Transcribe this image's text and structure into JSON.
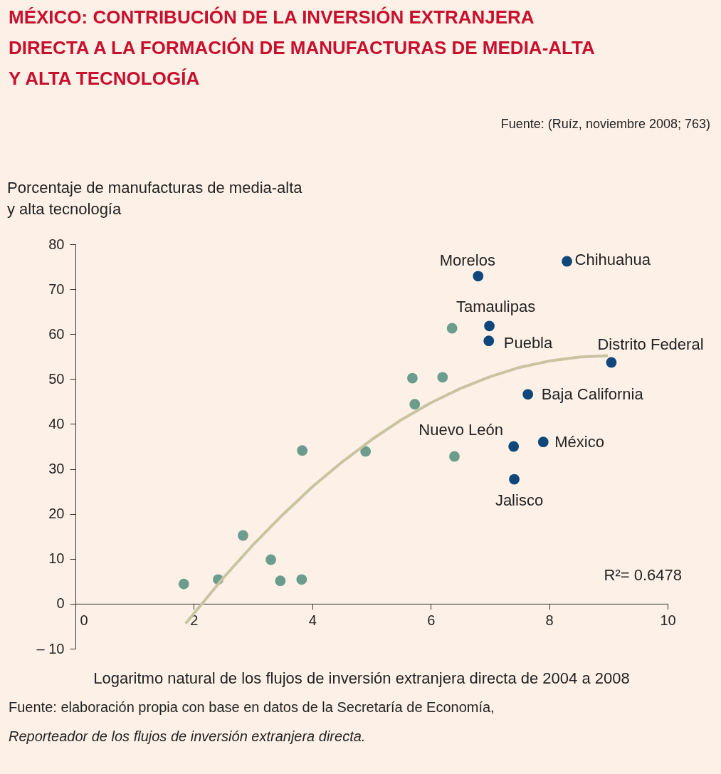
{
  "chart_data": {
    "type": "scatter",
    "title": "MÉXICO: CONTRIBUCIÓN DE LA INVERSIÓN EXTRANJERA DIRECTA A LA FORMACIÓN DE MANUFACTURAS DE MEDIA-ALTA Y ALTA TECNOLOGÍA",
    "xlabel": "Logaritmo natural de los flujos de inversión extranjera directa de 2004 a 2008",
    "ylabel": "Porcentaje de manufacturas de media-alta y alta tecnología",
    "xlim": [
      0,
      10
    ],
    "xticks": [
      0,
      2,
      4,
      6,
      8,
      10
    ],
    "ylim": [
      -10,
      80
    ],
    "yticks": [
      {
        "value": -10,
        "label": "– 10"
      },
      0,
      10,
      20,
      30,
      40,
      50,
      60,
      70,
      80
    ],
    "grid": false,
    "marker": "circle",
    "series": [
      {
        "color": "#6b9c8c",
        "x": [
          1.83,
          2.41,
          2.83,
          3.3,
          3.46,
          3.82,
          3.83,
          4.9,
          5.69,
          5.73,
          6.2,
          6.36,
          6.4
        ],
        "values": [
          4.4,
          5.4,
          15.2,
          9.8,
          5.1,
          5.4,
          34.1,
          33.9,
          50.2,
          44.4,
          50.4,
          61.3,
          32.8
        ]
      },
      {
        "color": "#0f477a",
        "x": [
          6.8,
          8.3,
          6.99,
          6.98,
          9.05,
          7.64,
          7.9,
          7.4,
          7.41
        ],
        "values": [
          72.9,
          76.2,
          61.8,
          58.5,
          53.7,
          46.6,
          36.0,
          35.0,
          27.7
        ],
        "value_labels": [
          "Morelos",
          "Chihuahua",
          "Tamaulipas",
          "Puebla",
          "Distrito Federal",
          "Baja California",
          "México",
          "Nuevo León",
          "Jalisco"
        ]
      },
      {
        "type": "line",
        "marker": "none",
        "color": "#c9c3a1",
        "x": [
          1.86,
          2.5,
          3,
          3.5,
          4,
          4.5,
          5,
          5.5,
          6,
          6.5,
          7,
          7.5,
          8,
          8.5,
          8.99
        ],
        "values": [
          -4.4,
          5.8,
          13.1,
          19.8,
          26.0,
          31.5,
          36.5,
          40.9,
          44.7,
          47.9,
          50.5,
          52.6,
          54.0,
          54.9,
          55.2
        ]
      }
    ],
    "annotations": [
      "Fuente: (Ruíz, noviembre 2008; 763)",
      "R²= 0.6478",
      "Fuente: elaboración propia con base en datos de la Secretaría de Economía,",
      "Reporteador de los flujos de inversión extranjera directa."
    ]
  }
}
